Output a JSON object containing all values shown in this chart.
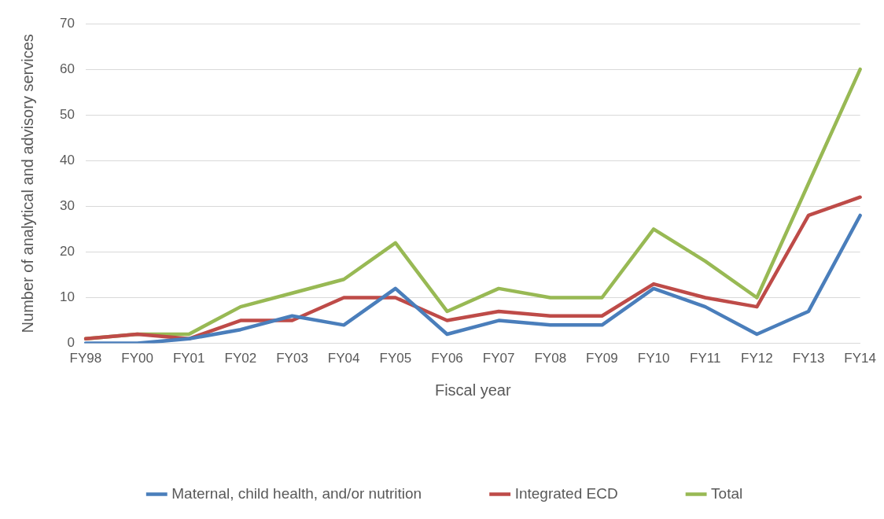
{
  "chart_data": {
    "type": "line",
    "xlabel": "Fiscal year",
    "ylabel": "Number of analytical and advisory services",
    "categories": [
      "FY98",
      "FY00",
      "FY01",
      "FY02",
      "FY03",
      "FY04",
      "FY05",
      "FY06",
      "FY07",
      "FY08",
      "FY09",
      "FY10",
      "FY11",
      "FY12",
      "FY13",
      "FY14"
    ],
    "series": [
      {
        "name": "Maternal, child health, and/or nutrition",
        "color": "#4a7ebb",
        "values": [
          0,
          0,
          1,
          3,
          6,
          4,
          12,
          2,
          5,
          4,
          4,
          12,
          8,
          2,
          7,
          28
        ]
      },
      {
        "name": "Integrated ECD",
        "color": "#be4b48",
        "values": [
          1,
          2,
          1,
          5,
          5,
          10,
          10,
          5,
          7,
          6,
          6,
          13,
          10,
          8,
          28,
          32
        ]
      },
      {
        "name": "Total",
        "color": "#98b954",
        "values": [
          1,
          2,
          2,
          8,
          11,
          14,
          22,
          7,
          12,
          10,
          10,
          25,
          18,
          10,
          35,
          60
        ]
      }
    ],
    "ylim": [
      0,
      70
    ],
    "yticks": [
      0,
      10,
      20,
      30,
      40,
      50,
      60,
      70
    ],
    "grid": "y",
    "legend": "bottom",
    "marker": "none",
    "line_style": "solid"
  }
}
